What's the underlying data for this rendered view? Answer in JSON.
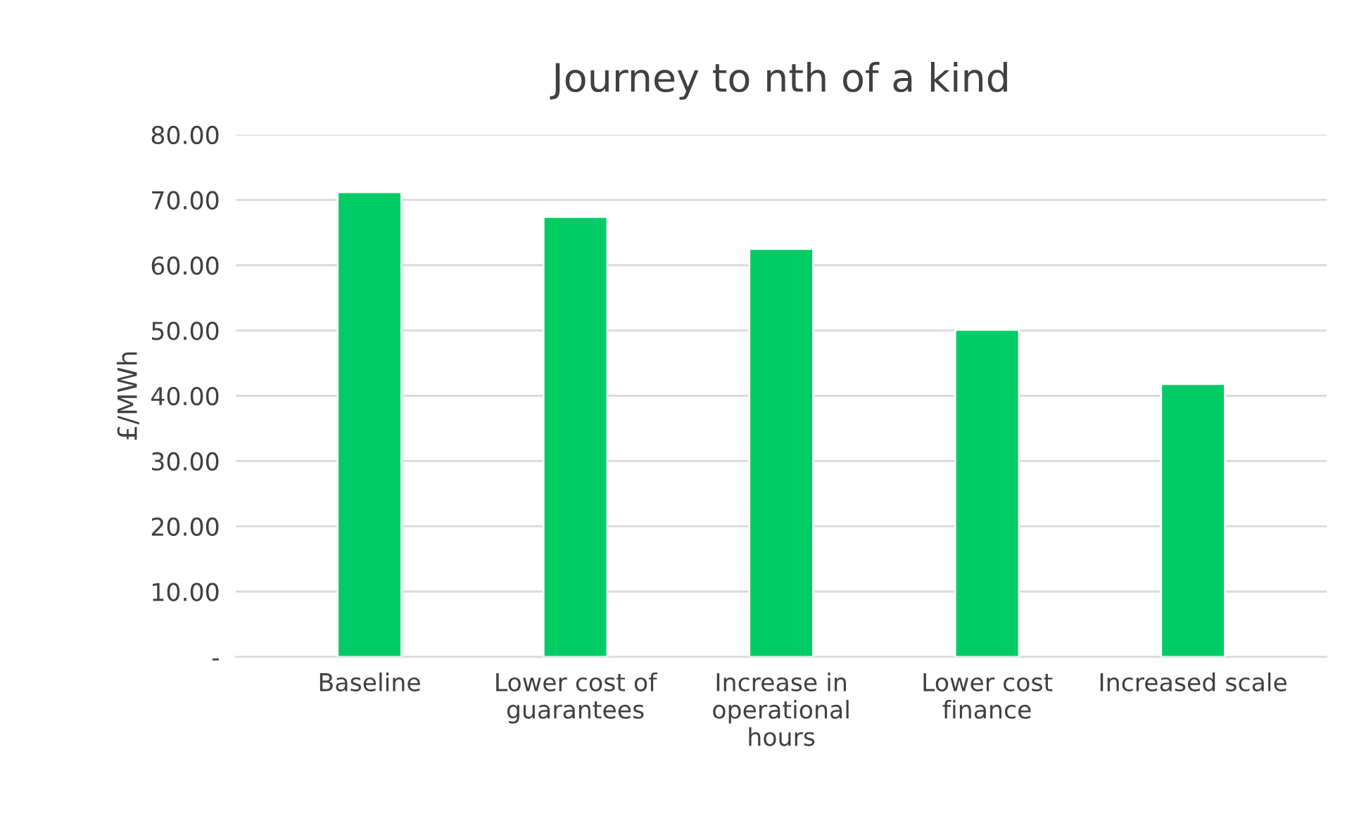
{
  "chart_data": {
    "type": "bar",
    "title": "Journey to nth of a kind",
    "ylabel": "£/MWh",
    "categories": [
      "Baseline",
      "Lower cost of\nguarantees",
      "Increase in\noperational\nhours",
      "Lower cost\nfinance",
      "Increased scale"
    ],
    "values": [
      71.2,
      67.4,
      62.5,
      50.1,
      41.8
    ],
    "color": "#00cc66",
    "ylim": [
      0,
      80
    ],
    "yticks": [
      {
        "value": 0,
        "label": "-"
      },
      {
        "value": 10,
        "label": "10.00"
      },
      {
        "value": 20,
        "label": "20.00"
      },
      {
        "value": 30,
        "label": "30.00"
      },
      {
        "value": 40,
        "label": "40.00"
      },
      {
        "value": 50,
        "label": "50.00"
      },
      {
        "value": 60,
        "label": "60.00"
      },
      {
        "value": 70,
        "label": "70.00"
      },
      {
        "value": 80,
        "label": "80.00"
      }
    ],
    "grid": "y",
    "legend": false
  }
}
